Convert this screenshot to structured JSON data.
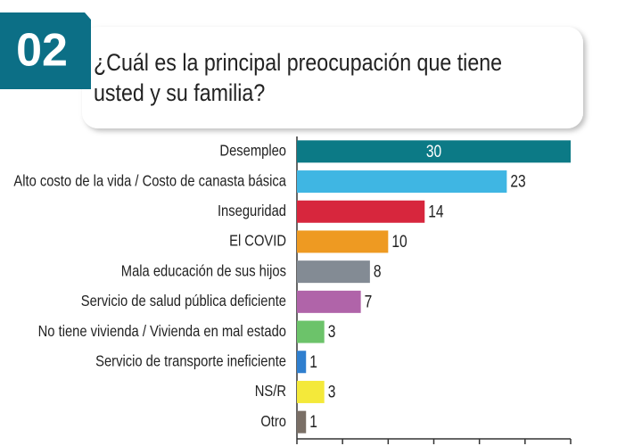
{
  "chart_data": {
    "type": "hbar",
    "badge": "02",
    "title": [
      "¿Cuál es la principal preocupación que tiene",
      "usted y su familia?"
    ],
    "categories": [
      "Desempleo",
      "Alto costo de la vida / Costo de canasta básica",
      "Inseguridad",
      "El COVID",
      "Mala educación de sus hijos",
      "Servicio de salud pública deficiente",
      "No tiene vivienda / Vivienda en mal estado",
      "Servicio de transporte ineficiente",
      "NS/R",
      "Otro"
    ],
    "values": [
      30,
      23,
      14,
      10,
      8,
      7,
      3,
      1,
      3,
      1
    ],
    "colors": [
      "#0c7a86",
      "#3fb6e3",
      "#d7263d",
      "#ee9a22",
      "#838b94",
      "#b064a9",
      "#6cc36a",
      "#2f7fcf",
      "#f4e93a",
      "#7a6f66"
    ],
    "xlim": [
      0,
      30
    ],
    "xticks": [
      0,
      5,
      10,
      15,
      20,
      25,
      30
    ]
  }
}
